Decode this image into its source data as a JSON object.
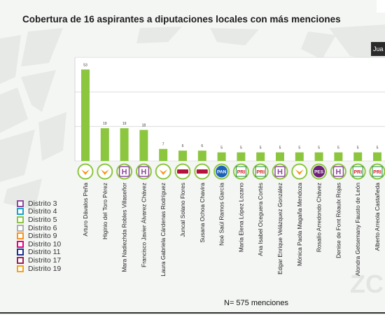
{
  "chart_data": {
    "type": "bar",
    "title": "Cobertura de 16 aspirantes a diputaciones locales con más menciones",
    "categories": [
      "Arturo Dávalos Peña",
      "Higinio del Toro Pérez",
      "Mara Nadiezhda Robles Villaseñor",
      "Francisco Javier Álvarez Chávez",
      "Laura Gabriela Cárdenas Rodríguez",
      "Juncal Solano Flores",
      "Susana Ochoa Chavira",
      "Noé Saúl Ramos García",
      "María Elena López Lozano",
      "Ana Isabel Oceguera Cortés",
      "Edgar Enrique Velázquez González",
      "Mónica Paola Magaña Mendoza",
      "Rosalío Arredondo Chávez",
      "Denise de Font Réaulx Rojas",
      "Alondra Getsemany Fausto de León",
      "Alberto Arreola Castañeda"
    ],
    "values": [
      53,
      19,
      19,
      18,
      7,
      6,
      6,
      5,
      5,
      5,
      5,
      5,
      5,
      5,
      5,
      5
    ],
    "value_labels": [
      "53",
      "19",
      "19",
      "18",
      "7",
      "6",
      "6",
      "5",
      "5",
      "5",
      "5",
      "5",
      "5",
      "5",
      "5",
      "5"
    ],
    "parties": [
      "MC",
      "MC",
      "H",
      "H",
      "MC",
      "MORENA",
      "MORENA",
      "PAN",
      "PRI",
      "PRI",
      "H",
      "MC",
      "PES",
      "H",
      "PRI",
      "PRI"
    ],
    "ylim": [
      0,
      60
    ],
    "bar_color": "#8cc63f",
    "grid": true,
    "legend_position": "bottom-left"
  },
  "party_colors": {
    "MC": "#f7941d",
    "H": "#8e4a9e",
    "MORENA": "#b5123e",
    "PAN": "#1c63b7",
    "PRI": "#d32027",
    "PES": "#6d2077"
  },
  "party_texts": {
    "H": "H",
    "PAN": "PAN",
    "PRI": "PRI",
    "PES": "PES"
  },
  "legend": [
    {
      "label": "Distrito 3",
      "color": "#8e4a9e"
    },
    {
      "label": "Distrito 4",
      "color": "#19a3c9"
    },
    {
      "label": "Distrito 5",
      "color": "#8cc63f"
    },
    {
      "label": "Distrito 6",
      "color": "#b0b0b0"
    },
    {
      "label": "Distrito 9",
      "color": "#f7941d"
    },
    {
      "label": "Distrito 10",
      "color": "#e5007e"
    },
    {
      "label": "Distrito 11",
      "color": "#1c2f8f"
    },
    {
      "label": "Distrito 17",
      "color": "#9c2058"
    },
    {
      "label": "Distrito 19",
      "color": "#f9a31b"
    }
  ],
  "footnote": "N= 575 menciones",
  "corner_label": "Jua",
  "watermark": "ZC"
}
